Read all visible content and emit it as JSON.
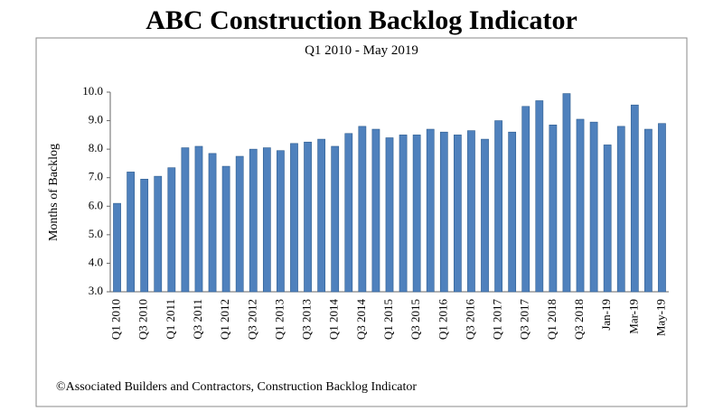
{
  "chart_data": {
    "type": "bar",
    "title": "ABC Construction Backlog Indicator",
    "subtitle": "Q1 2010 - May 2019",
    "y_label": "Months of Backlog",
    "footer": "©Associated Builders and Contractors, Construction Backlog Indicator",
    "categories": [
      "Q1 2010",
      null,
      "Q3 2010",
      null,
      "Q1 2011",
      null,
      "Q3 2011",
      null,
      "Q1 2012",
      null,
      "Q3 2012",
      null,
      "Q1 2013",
      null,
      "Q3 2013",
      null,
      "Q1 2014",
      null,
      "Q3 2014",
      null,
      "Q1 2015",
      null,
      "Q3 2015",
      null,
      "Q1 2016",
      null,
      "Q3 2016",
      null,
      "Q1 2017",
      null,
      "Q3 2017",
      null,
      "Q1 2018",
      null,
      "Q3 2018",
      null,
      "Jan-19",
      null,
      "Mar-19",
      null,
      "May-19"
    ],
    "values": [
      6.1,
      7.2,
      6.95,
      7.05,
      7.35,
      8.05,
      8.1,
      7.85,
      7.4,
      7.75,
      8.0,
      8.05,
      7.95,
      8.2,
      8.25,
      8.35,
      8.1,
      8.55,
      8.8,
      8.7,
      8.4,
      8.5,
      8.5,
      8.7,
      8.6,
      8.5,
      8.65,
      8.35,
      9.0,
      8.6,
      9.5,
      9.7,
      8.85,
      9.95,
      9.05,
      8.95,
      8.15,
      8.8,
      9.55,
      8.7,
      8.9
    ],
    "color": "#4f81bd",
    "ylim": [
      3,
      10
    ],
    "yticks": [
      {
        "value": 3,
        "label": "3.0"
      },
      {
        "value": 4,
        "label": "4.0"
      },
      {
        "value": 5,
        "label": "5.0"
      },
      {
        "value": 6,
        "label": "6.0"
      },
      {
        "value": 7,
        "label": "7.0"
      },
      {
        "value": 8,
        "label": "8.0"
      },
      {
        "value": 9,
        "label": "9.0"
      },
      {
        "value": 10,
        "label": "10.0"
      }
    ],
    "grid": false
  }
}
